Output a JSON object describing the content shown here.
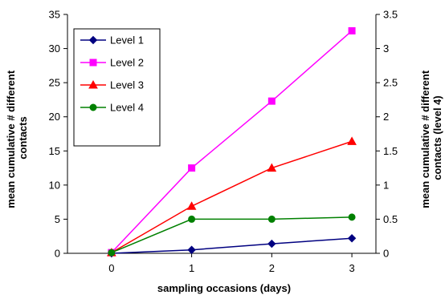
{
  "chart_data": {
    "type": "line",
    "title": "",
    "xlabel": "sampling occasions (days)",
    "ylabel": [
      "mean cumulative # different",
      "contacts"
    ],
    "ylabel_right": [
      "mean cumulative # different",
      "contacts (level 4)"
    ],
    "x": [
      0,
      1,
      2,
      3
    ],
    "xlim": [
      -0.55,
      3.3
    ],
    "ylim": [
      0,
      35
    ],
    "ylim_right": [
      0,
      3.5
    ],
    "yticks": [
      0,
      5,
      10,
      15,
      20,
      25,
      30,
      35
    ],
    "yticks_right": [
      0,
      0.5,
      1,
      1.5,
      2,
      2.5,
      3,
      3.5
    ],
    "yticks_right_labels": [
      "0",
      "0.5",
      "1",
      "1.5",
      "2",
      "2.5",
      "3",
      "3.5"
    ],
    "grid": false,
    "legend_position": "top-left",
    "series": [
      {
        "name": "Level 1",
        "axis": "left",
        "values": [
          0,
          0.5,
          1.4,
          2.2
        ],
        "color": "#000080",
        "marker": "diamond"
      },
      {
        "name": "Level 2",
        "axis": "left",
        "values": [
          0.1,
          12.5,
          22.3,
          32.6
        ],
        "color": "#FF00FF",
        "marker": "square"
      },
      {
        "name": "Level 3",
        "axis": "left",
        "values": [
          0.1,
          6.9,
          12.5,
          16.4
        ],
        "color": "#FF0000",
        "marker": "triangle"
      },
      {
        "name": "Level 4",
        "axis": "right",
        "values": [
          0.01,
          0.5,
          0.5,
          0.53
        ],
        "color": "#008000",
        "marker": "circle"
      }
    ]
  }
}
